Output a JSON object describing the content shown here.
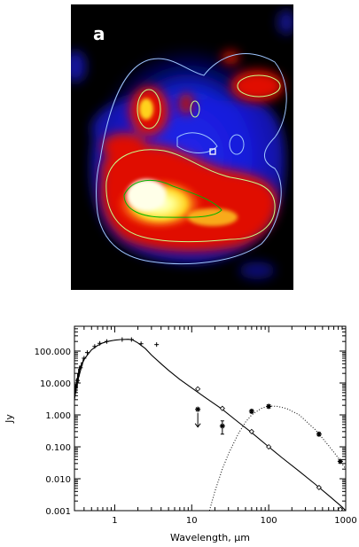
{
  "panel_a": {
    "label": "a",
    "colormap": [
      "#000000",
      "#0000b4",
      "#2a35ff",
      "#c80000",
      "#ff2a0a",
      "#ff8a2a",
      "#ffd21e",
      "#ffff8c",
      "#ffffe8"
    ],
    "contour_colors": [
      "#9fc6ff",
      "#c8ff8a",
      "#00b400"
    ]
  },
  "chart_data": {
    "type": "scatter",
    "title": "",
    "xlabel": "Wavelength, μm",
    "ylabel": "Jy",
    "x_scale": "log",
    "y_scale": "log",
    "xlim": [
      0.3,
      1000
    ],
    "ylim": [
      0.001,
      600
    ],
    "x_ticks": [
      1,
      10,
      100,
      1000
    ],
    "x_tick_labels": [
      "1",
      "10",
      "100",
      "1000"
    ],
    "y_ticks": [
      0.001,
      0.01,
      0.1,
      1,
      10,
      100
    ],
    "y_tick_labels": [
      "0.001",
      "0.010",
      "0.100",
      "1.000",
      "10.000",
      "100.000"
    ],
    "series": [
      {
        "style": "solid-line",
        "x": [
          0.3,
          0.32,
          0.34,
          0.36,
          0.38,
          0.4,
          0.45,
          0.5,
          0.6,
          0.7,
          0.8,
          1.0,
          1.2,
          1.5,
          1.7,
          2.0,
          2.5,
          3.0,
          4.0,
          5.0,
          7.0,
          10,
          15,
          25,
          40,
          60,
          100,
          150,
          250,
          400,
          600,
          900,
          1000
        ],
        "y": [
          3,
          8,
          15,
          25,
          40,
          55,
          80,
          110,
          150,
          180,
          200,
          220,
          230,
          235,
          225,
          180,
          120,
          75,
          40,
          25,
          13,
          7,
          3.5,
          1.5,
          0.6,
          0.28,
          0.1,
          0.045,
          0.017,
          0.0068,
          0.003,
          0.0013,
          0.001
        ]
      },
      {
        "style": "dotted-line",
        "x": [
          17,
          20,
          25,
          30,
          40,
          50,
          60,
          80,
          100,
          130,
          170,
          250,
          400,
          600,
          800,
          1000
        ],
        "y": [
          0.001,
          0.004,
          0.02,
          0.06,
          0.25,
          0.6,
          1.0,
          1.6,
          1.9,
          1.85,
          1.6,
          1.0,
          0.35,
          0.11,
          0.045,
          0.02
        ]
      },
      {
        "style": "diamond-markers",
        "x": [
          12,
          25,
          60,
          100,
          450,
          850
        ],
        "y": [
          6.5,
          1.6,
          0.3,
          0.1,
          0.0053,
          0.0011
        ]
      },
      {
        "style": "asterisk-points",
        "x": [
          60,
          100,
          450,
          850,
          25
        ],
        "y": [
          1.3,
          1.85,
          0.25,
          0.035,
          0.45
        ],
        "y_err": [
          0.15,
          0.2,
          0.03,
          0.004,
          0.2
        ]
      },
      {
        "style": "upper-limit",
        "x": [
          12
        ],
        "y": [
          1.5
        ]
      },
      {
        "style": "photometry-points",
        "x": [
          0.33,
          0.36,
          0.4,
          0.44,
          0.55,
          0.64,
          0.79,
          1.25,
          1.65,
          2.2,
          3.5
        ],
        "y": [
          12,
          30,
          60,
          90,
          140,
          175,
          200,
          230,
          230,
          170,
          160
        ]
      }
    ]
  }
}
